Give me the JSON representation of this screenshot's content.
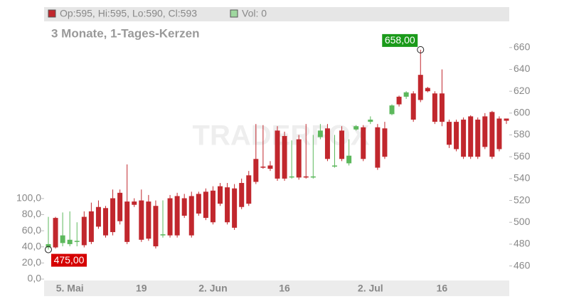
{
  "chart_data": {
    "type": "candlestick",
    "subtitle": "3 Monate, 1-Tages-Kerzen",
    "legend_price": "Op:595, Hi:595, Lo:590, Cl:593",
    "legend_volume": "Vol: 0",
    "watermark": "TRADERFOX",
    "up_color": "#5cb85c",
    "down_color": "#c1272d",
    "categories": [
      null,
      null,
      null,
      "5. Mai",
      null,
      null,
      null,
      null,
      null,
      null,
      null,
      null,
      null,
      "19",
      null,
      null,
      null,
      null,
      null,
      null,
      null,
      null,
      null,
      "2. Jun",
      null,
      null,
      null,
      null,
      null,
      null,
      null,
      null,
      null,
      "16",
      null,
      null,
      null,
      null,
      null,
      null,
      null,
      null,
      null,
      null,
      null,
      "2. Jul",
      null,
      null,
      null,
      null,
      null,
      null,
      null,
      null,
      null,
      "16",
      null,
      null,
      null,
      null,
      null,
      null,
      null,
      null,
      null
    ],
    "open": [
      477,
      504,
      481,
      480,
      482,
      505,
      510,
      514,
      513,
      522,
      527,
      519,
      519,
      520,
      519,
      515,
      488,
      522,
      524,
      522,
      524,
      526,
      528,
      529,
      533,
      532,
      531,
      536,
      543,
      558,
      551,
      552,
      584,
      579,
      541,
      576,
      542,
      541,
      578,
      586,
      551,
      584,
      554,
      585,
      587,
      592,
      587,
      586,
      599,
      615,
      615,
      618,
      635,
      623,
      618,
      618,
      592,
      592,
      594,
      597,
      594,
      597,
      601,
      595,
      595
    ],
    "high": [
      505,
      505,
      509,
      510,
      500,
      510,
      518,
      520,
      515,
      530,
      530,
      553,
      522,
      530,
      525,
      520,
      520,
      525,
      527,
      526,
      528,
      528,
      531,
      533,
      536,
      536,
      535,
      540,
      547,
      590,
      589,
      556,
      588,
      583,
      575,
      580,
      590,
      580,
      590,
      590,
      580,
      588,
      576,
      589,
      589,
      597,
      590,
      592,
      608,
      616,
      620,
      620,
      658,
      624,
      620,
      640,
      594,
      594,
      596,
      598,
      596,
      600,
      602,
      597,
      595
    ],
    "low": [
      475,
      476,
      478,
      478,
      478,
      477,
      480,
      494,
      486,
      488,
      498,
      480,
      514,
      482,
      483,
      476,
      486,
      486,
      486,
      504,
      486,
      506,
      502,
      498,
      515,
      498,
      493,
      512,
      515,
      535,
      549,
      547,
      538,
      538,
      540,
      539,
      540,
      540,
      576,
      556,
      550,
      556,
      552,
      584,
      556,
      590,
      548,
      558,
      598,
      606,
      613,
      592,
      610,
      619,
      590,
      588,
      568,
      565,
      558,
      558,
      558,
      567,
      558,
      565,
      590
    ],
    "close": [
      480,
      477,
      488,
      484,
      483,
      479,
      482,
      496,
      488,
      491,
      501,
      482,
      516,
      484,
      485,
      478,
      489,
      488,
      488,
      506,
      488,
      508,
      504,
      500,
      517,
      500,
      495,
      514,
      517,
      537,
      550,
      549,
      540,
      540,
      542,
      541,
      541,
      542,
      584,
      558,
      552,
      558,
      561,
      588,
      558,
      594,
      550,
      560,
      607,
      608,
      619,
      594,
      612,
      620,
      592,
      592,
      571,
      567,
      560,
      560,
      560,
      569,
      560,
      567,
      593
    ],
    "annotations": [
      {
        "text": "658,00",
        "value": 658,
        "index": 52,
        "color": "#1a9a1a"
      },
      {
        "text": "475,00",
        "value": 475,
        "index": 0,
        "color": "#d50000"
      }
    ],
    "ylim": [
      448,
      684
    ],
    "yticks": [
      460,
      480,
      500,
      520,
      540,
      560,
      580,
      600,
      620,
      640,
      660
    ],
    "y2lim": [
      0,
      320
    ],
    "y2ticks": [
      {
        "value": 0,
        "label": "0,0"
      },
      {
        "value": 20,
        "label": "20,0"
      },
      {
        "value": 40,
        "label": "40,0"
      },
      {
        "value": 60,
        "label": "60,0"
      },
      {
        "value": 80,
        "label": "80,0"
      },
      {
        "value": 100,
        "label": "100,0"
      }
    ]
  }
}
